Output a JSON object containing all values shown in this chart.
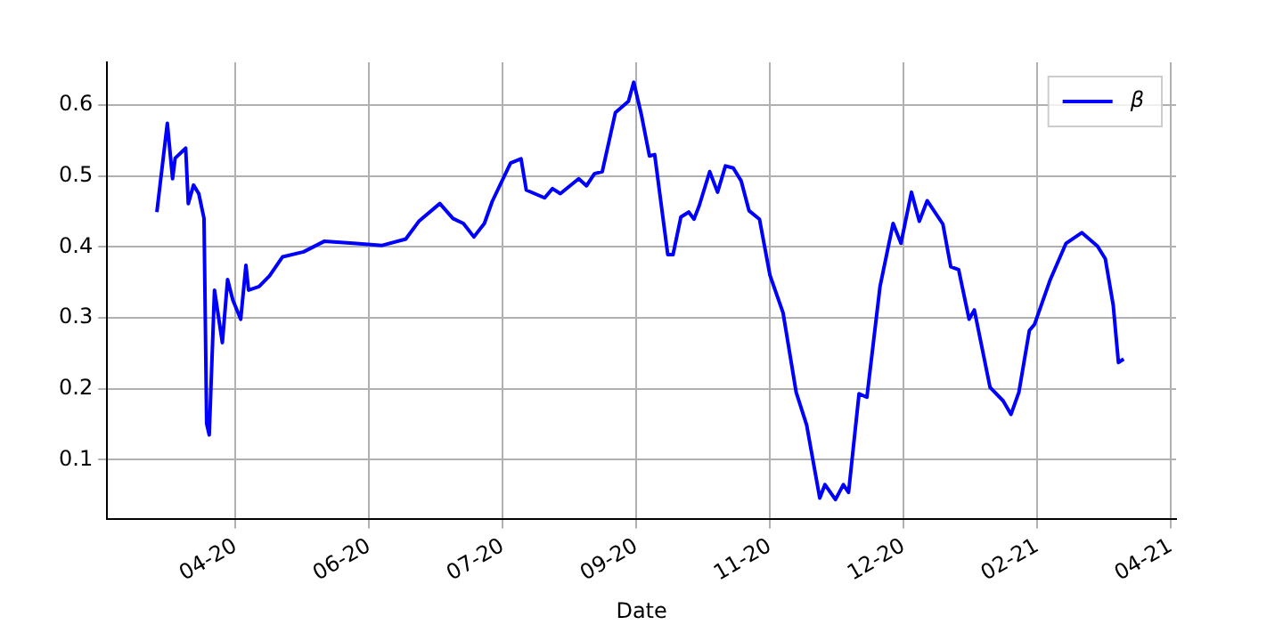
{
  "chart_data": {
    "type": "line",
    "xlabel": "Date",
    "x": [
      "2020-03-21",
      "2020-03-25",
      "2020-03-27",
      "2020-03-28",
      "2020-04-01",
      "2020-04-02",
      "2020-04-04",
      "2020-04-06",
      "2020-04-08",
      "2020-04-09",
      "2020-04-10",
      "2020-04-12",
      "2020-04-15",
      "2020-04-17",
      "2020-04-19",
      "2020-04-22",
      "2020-04-24",
      "2020-04-25",
      "2020-04-29",
      "2020-05-03",
      "2020-05-08",
      "2020-05-16",
      "2020-05-24",
      "2020-06-04",
      "2020-06-15",
      "2020-06-24",
      "2020-06-29",
      "2020-07-07",
      "2020-07-12",
      "2020-07-16",
      "2020-07-20",
      "2020-07-24",
      "2020-07-27",
      "2020-08-03",
      "2020-08-07",
      "2020-08-09",
      "2020-08-16",
      "2020-08-19",
      "2020-08-22",
      "2020-08-29",
      "2020-09-01",
      "2020-09-04",
      "2020-09-07",
      "2020-09-12",
      "2020-09-17",
      "2020-09-19",
      "2020-09-22",
      "2020-09-25",
      "2020-09-27",
      "2020-10-02",
      "2020-10-04",
      "2020-10-07",
      "2020-10-10",
      "2020-10-12",
      "2020-10-14",
      "2020-10-18",
      "2020-10-21",
      "2020-10-24",
      "2020-10-27",
      "2020-10-30",
      "2020-11-02",
      "2020-11-06",
      "2020-11-10",
      "2020-11-15",
      "2020-11-20",
      "2020-11-24",
      "2020-11-29",
      "2020-12-01",
      "2020-12-05",
      "2020-12-08",
      "2020-12-10",
      "2020-12-14",
      "2020-12-17",
      "2020-12-22",
      "2020-12-27",
      "2020-12-30",
      "2021-01-03",
      "2021-01-06",
      "2021-01-09",
      "2021-01-15",
      "2021-01-18",
      "2021-01-21",
      "2021-01-25",
      "2021-01-27",
      "2021-02-02",
      "2021-02-07",
      "2021-02-10",
      "2021-02-13",
      "2021-02-17",
      "2021-02-19",
      "2021-02-25",
      "2021-03-03",
      "2021-03-09",
      "2021-03-15",
      "2021-03-18",
      "2021-03-21",
      "2021-03-23",
      "2021-03-25"
    ],
    "series": [
      {
        "name": "β",
        "color": "#0000ff",
        "values": [
          0.449,
          0.574,
          0.496,
          0.525,
          0.539,
          0.461,
          0.487,
          0.475,
          0.44,
          0.151,
          0.135,
          0.339,
          0.265,
          0.354,
          0.325,
          0.298,
          0.374,
          0.339,
          0.344,
          0.359,
          0.386,
          0.393,
          0.408,
          0.405,
          0.402,
          0.411,
          0.436,
          0.461,
          0.44,
          0.433,
          0.414,
          0.433,
          0.464,
          0.518,
          0.524,
          0.48,
          0.469,
          0.482,
          0.475,
          0.496,
          0.486,
          0.503,
          0.506,
          0.589,
          0.605,
          0.632,
          0.585,
          0.528,
          0.53,
          0.389,
          0.389,
          0.442,
          0.449,
          0.439,
          0.458,
          0.506,
          0.477,
          0.514,
          0.511,
          0.493,
          0.451,
          0.439,
          0.36,
          0.307,
          0.195,
          0.149,
          0.046,
          0.065,
          0.044,
          0.065,
          0.054,
          0.193,
          0.188,
          0.344,
          0.433,
          0.405,
          0.477,
          0.436,
          0.465,
          0.432,
          0.372,
          0.368,
          0.298,
          0.311,
          0.202,
          0.183,
          0.164,
          0.195,
          0.282,
          0.291,
          0.354,
          0.405,
          0.42,
          0.401,
          0.383,
          0.318,
          0.237,
          0.242
        ]
      }
    ],
    "xlim": [
      "2020-03-02",
      "2021-04-14"
    ],
    "xticks": [
      {
        "value": "2020-04-20",
        "label": "04-20"
      },
      {
        "value": "2020-06-10",
        "label": "06-20"
      },
      {
        "value": "2020-07-31",
        "label": "07-20"
      },
      {
        "value": "2020-09-20",
        "label": "09-20"
      },
      {
        "value": "2020-11-10",
        "label": "11-20"
      },
      {
        "value": "2020-12-31",
        "label": "12-20"
      },
      {
        "value": "2021-02-20",
        "label": "02-21"
      },
      {
        "value": "2021-04-12",
        "label": "04-21"
      }
    ],
    "ylim": [
      0.016,
      0.66
    ],
    "yticks": [
      0.1,
      0.2,
      0.3,
      0.4,
      0.5,
      0.6
    ],
    "grid": true,
    "legend": "top right",
    "marker": "none",
    "line_style": "solid"
  }
}
